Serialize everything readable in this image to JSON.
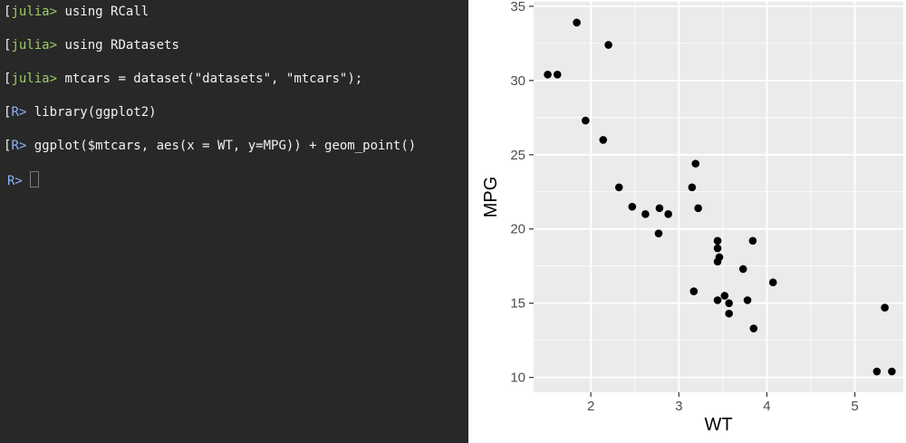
{
  "terminal": {
    "lines": [
      {
        "prompt": "julia>",
        "command": "using RCall"
      },
      {
        "prompt": "julia>",
        "command": "using RDatasets"
      },
      {
        "prompt": "julia>",
        "command": "mtcars = dataset(\"datasets\", \"mtcars\");"
      },
      {
        "prompt": "R>",
        "command": "library(ggplot2)"
      },
      {
        "prompt": "R>",
        "command": "ggplot($mtcars, aes(x = WT, y=MPG)) + geom_point()"
      }
    ],
    "active_prompt": "R>"
  },
  "colors": {
    "terminal_bg": "#282828",
    "julia_prompt": "#9ccc65",
    "r_prompt": "#8ab4f8",
    "panel_bg": "#ebebeb",
    "grid": "#ffffff",
    "point": "#000000"
  },
  "chart_data": {
    "type": "scatter",
    "xlabel": "WT",
    "ylabel": "MPG",
    "xlim": [
      1.35,
      5.55
    ],
    "ylim": [
      9.0,
      35.3
    ],
    "xticks": [
      2,
      3,
      4,
      5
    ],
    "yticks": [
      10,
      15,
      20,
      25,
      30,
      35
    ],
    "grid": true,
    "points": [
      {
        "x": 1.51,
        "y": 30.4
      },
      {
        "x": 1.62,
        "y": 30.4
      },
      {
        "x": 1.84,
        "y": 33.9
      },
      {
        "x": 1.94,
        "y": 27.3
      },
      {
        "x": 2.14,
        "y": 26.0
      },
      {
        "x": 2.2,
        "y": 32.4
      },
      {
        "x": 2.32,
        "y": 22.8
      },
      {
        "x": 2.47,
        "y": 21.5
      },
      {
        "x": 2.62,
        "y": 21.0
      },
      {
        "x": 2.77,
        "y": 19.7
      },
      {
        "x": 2.78,
        "y": 21.4
      },
      {
        "x": 2.88,
        "y": 21.0
      },
      {
        "x": 3.15,
        "y": 22.8
      },
      {
        "x": 3.17,
        "y": 15.8
      },
      {
        "x": 3.19,
        "y": 24.4
      },
      {
        "x": 3.22,
        "y": 21.4
      },
      {
        "x": 3.44,
        "y": 19.2
      },
      {
        "x": 3.44,
        "y": 18.7
      },
      {
        "x": 3.44,
        "y": 17.8
      },
      {
        "x": 3.44,
        "y": 15.2
      },
      {
        "x": 3.46,
        "y": 18.1
      },
      {
        "x": 3.52,
        "y": 15.5
      },
      {
        "x": 3.57,
        "y": 15.0
      },
      {
        "x": 3.57,
        "y": 14.3
      },
      {
        "x": 3.73,
        "y": 17.3
      },
      {
        "x": 3.78,
        "y": 15.2
      },
      {
        "x": 3.84,
        "y": 19.2
      },
      {
        "x": 3.85,
        "y": 13.3
      },
      {
        "x": 4.07,
        "y": 16.4
      },
      {
        "x": 5.25,
        "y": 10.4
      },
      {
        "x": 5.34,
        "y": 14.7
      },
      {
        "x": 5.42,
        "y": 10.4
      }
    ]
  }
}
